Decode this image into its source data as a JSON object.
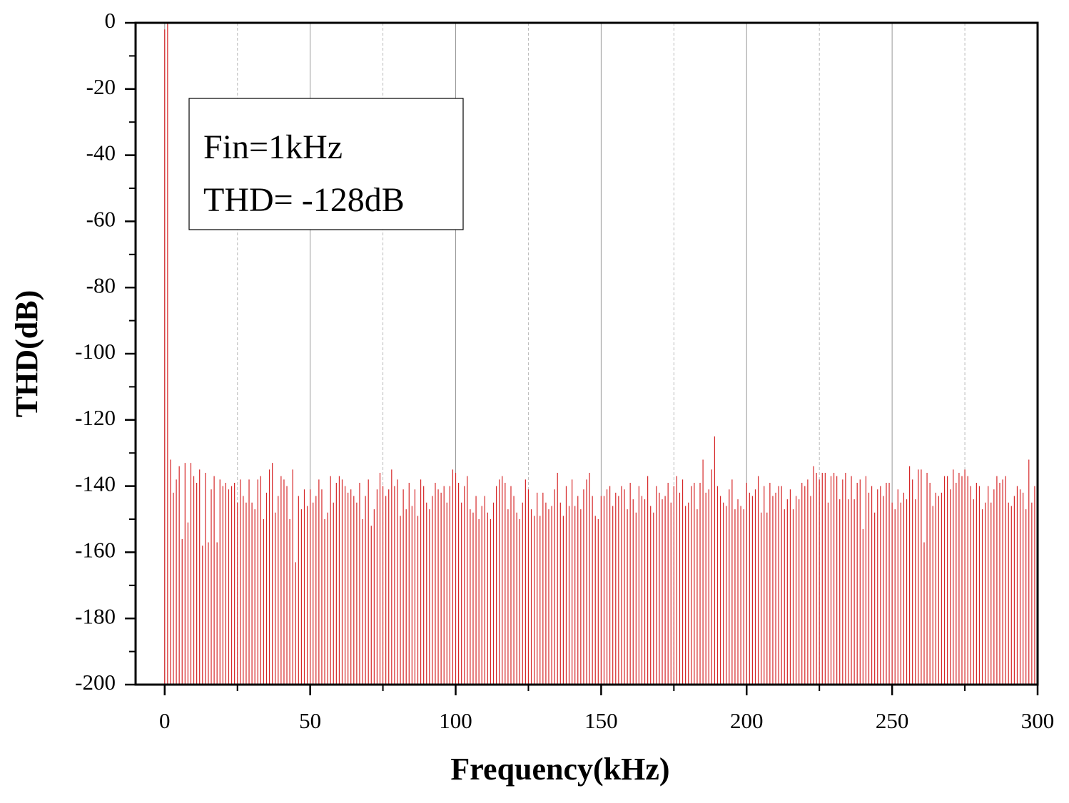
{
  "chart_data": {
    "type": "stem",
    "xlabel": "Frequency(kHz)",
    "ylabel": "THD(dB)",
    "annotations": [
      "Fin=1kHz",
      "THD= -128dB"
    ],
    "color": "#d62728",
    "xlim": [
      -10,
      300
    ],
    "xticks": [
      0,
      50,
      100,
      150,
      200,
      250,
      300
    ],
    "ylim": [
      -200,
      0
    ],
    "yticks": [
      -200,
      -180,
      -160,
      -140,
      -120,
      -100,
      -80,
      -60,
      -40,
      -20,
      0
    ],
    "grid": true,
    "x": [
      0,
      1,
      2,
      3,
      4,
      5,
      6,
      7,
      8,
      9,
      10,
      11,
      12,
      13,
      14,
      15,
      16,
      17,
      18,
      19,
      20,
      21,
      22,
      23,
      24,
      25,
      26,
      27,
      28,
      29,
      30,
      31,
      32,
      33,
      34,
      35,
      36,
      37,
      38,
      39,
      40,
      41,
      42,
      43,
      44,
      45,
      46,
      47,
      48,
      49,
      50,
      51,
      52,
      53,
      54,
      55,
      56,
      57,
      58,
      59,
      60,
      61,
      62,
      63,
      64,
      65,
      66,
      67,
      68,
      69,
      70,
      71,
      72,
      73,
      74,
      75,
      76,
      77,
      78,
      79,
      80,
      81,
      82,
      83,
      84,
      85,
      86,
      87,
      88,
      89,
      90,
      91,
      92,
      93,
      94,
      95,
      96,
      97,
      98,
      99,
      100,
      101,
      102,
      103,
      104,
      105,
      106,
      107,
      108,
      109,
      110,
      111,
      112,
      113,
      114,
      115,
      116,
      117,
      118,
      119,
      120,
      121,
      122,
      123,
      124,
      125,
      126,
      127,
      128,
      129,
      130,
      131,
      132,
      133,
      134,
      135,
      136,
      137,
      138,
      139,
      140,
      141,
      142,
      143,
      144,
      145,
      146,
      147,
      148,
      149,
      150,
      151,
      152,
      153,
      154,
      155,
      156,
      157,
      158,
      159,
      160,
      161,
      162,
      163,
      164,
      165,
      166,
      167,
      168,
      169,
      170,
      171,
      172,
      173,
      174,
      175,
      176,
      177,
      178,
      179,
      180,
      181,
      182,
      183,
      184,
      185,
      186,
      187,
      188,
      189,
      190,
      191,
      192,
      193,
      194,
      195,
      196,
      197,
      198,
      199,
      200,
      201,
      202,
      203,
      204,
      205,
      206,
      207,
      208,
      209,
      210,
      211,
      212,
      213,
      214,
      215,
      216,
      217,
      218,
      219,
      220,
      221,
      222,
      223,
      224,
      225,
      226,
      227,
      228,
      229,
      230,
      231,
      232,
      233,
      234,
      235,
      236,
      237,
      238,
      239,
      240,
      241,
      242,
      243,
      244,
      245,
      246,
      247,
      248,
      249,
      250,
      251,
      252,
      253,
      254,
      255,
      256,
      257,
      258,
      259,
      260,
      261,
      262,
      263,
      264,
      265,
      266,
      267,
      268,
      269,
      270,
      271,
      272,
      273,
      274,
      275,
      276,
      277,
      278,
      279,
      280,
      281,
      282,
      283,
      284,
      285,
      286,
      287,
      288,
      289,
      290,
      291,
      292,
      293,
      294,
      295,
      296,
      297,
      298,
      299,
      300
    ],
    "values": [
      -2,
      0,
      -132,
      -142,
      -138,
      -134,
      -156,
      -133,
      -151,
      -133,
      -137,
      -139,
      -135,
      -158,
      -136,
      -157,
      -141,
      -137,
      -157,
      -138,
      -140,
      -139,
      -141,
      -140,
      -139,
      -145,
      -138,
      -143,
      -145,
      -138,
      -145,
      -147,
      -138,
      -137,
      -150,
      -142,
      -135,
      -133,
      -148,
      -143,
      -137,
      -138,
      -140,
      -150,
      -135,
      -163,
      -143,
      -147,
      -141,
      -146,
      -141,
      -145,
      -143,
      -138,
      -141,
      -150,
      -148,
      -137,
      -145,
      -139,
      -137,
      -138,
      -140,
      -142,
      -141,
      -143,
      -145,
      -139,
      -150,
      -143,
      -138,
      -152,
      -147,
      -141,
      -136,
      -140,
      -143,
      -141,
      -135,
      -140,
      -138,
      -149,
      -141,
      -147,
      -139,
      -146,
      -141,
      -149,
      -138,
      -140,
      -145,
      -147,
      -143,
      -139,
      -141,
      -142,
      -140,
      -145,
      -140,
      -135,
      -136,
      -139,
      -145,
      -140,
      -137,
      -147,
      -148,
      -143,
      -150,
      -146,
      -143,
      -148,
      -150,
      -145,
      -140,
      -138,
      -137,
      -139,
      -147,
      -140,
      -143,
      -148,
      -150,
      -145,
      -138,
      -141,
      -147,
      -149,
      -142,
      -149,
      -142,
      -145,
      -147,
      -146,
      -141,
      -136,
      -145,
      -149,
      -140,
      -146,
      -138,
      -146,
      -143,
      -147,
      -141,
      -138,
      -136,
      -143,
      -149,
      -150,
      -143,
      -143,
      -141,
      -140,
      -146,
      -142,
      -143,
      -140,
      -141,
      -147,
      -139,
      -144,
      -148,
      -140,
      -143,
      -144,
      -137,
      -146,
      -148,
      -140,
      -142,
      -144,
      -143,
      -139,
      -145,
      -140,
      -137,
      -142,
      -138,
      -146,
      -145,
      -140,
      -139,
      -147,
      -139,
      -132,
      -142,
      -141,
      -135,
      -125,
      -140,
      -143,
      -145,
      -146,
      -141,
      -138,
      -147,
      -144,
      -146,
      -147,
      -139,
      -142,
      -143,
      -141,
      -137,
      -148,
      -140,
      -148,
      -139,
      -143,
      -142,
      -140,
      -140,
      -147,
      -144,
      -141,
      -147,
      -143,
      -144,
      -139,
      -140,
      -138,
      -143,
      -134,
      -136,
      -138,
      -136,
      -136,
      -145,
      -137,
      -136,
      -137,
      -144,
      -138,
      -136,
      -144,
      -137,
      -144,
      -139,
      -138,
      -153,
      -137,
      -142,
      -140,
      -148,
      -141,
      -140,
      -143,
      -139,
      -139,
      -145,
      -147,
      -141,
      -145,
      -142,
      -144,
      -134,
      -138,
      -144,
      -135,
      -135,
      -157,
      -136,
      -139,
      -146,
      -142,
      -143,
      -142,
      -137,
      -137,
      -141,
      -135,
      -139,
      -136,
      -137,
      -135,
      -137,
      -140,
      -144,
      -139,
      -140,
      -147,
      -145,
      -140,
      -145,
      -141,
      -137,
      -139,
      -138,
      -137,
      -145,
      -146,
      -143,
      -140,
      -141,
      -142,
      -147,
      -132,
      -145,
      -140,
      -139
    ]
  }
}
